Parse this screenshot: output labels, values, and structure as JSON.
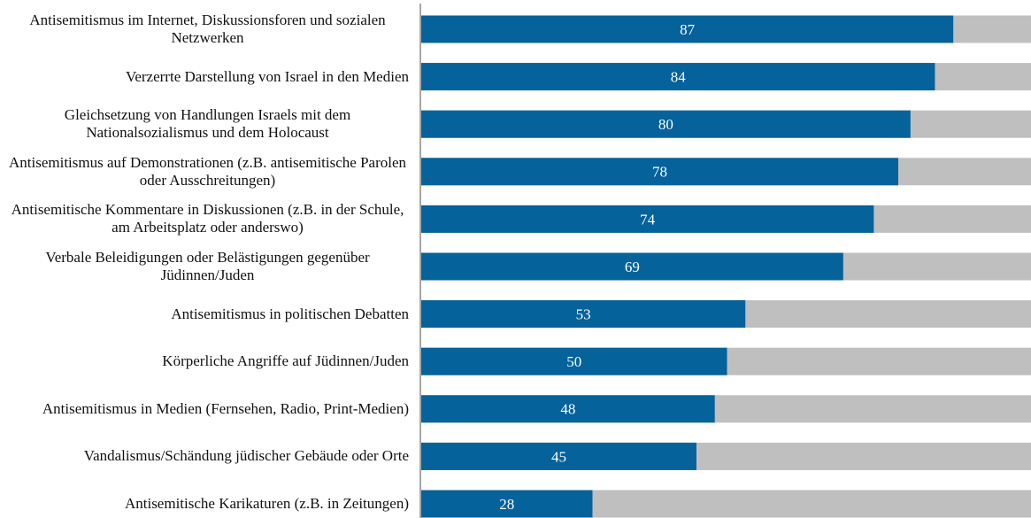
{
  "chart_data": {
    "type": "bar",
    "categories": [
      "Antisemitismus im Internet, Diskussionsforen und sozialen Netzwerken",
      "Verzerrte Darstellung von Israel in den Medien",
      "Gleichsetzung von Handlungen Israels mit dem Nationalsozialismus und dem Holocaust",
      "Antisemitismus auf Demonstrationen (z.B. antisemitische Parolen oder Ausschreitungen)",
      "Antisemitische Kommentare in Diskussionen (z.B. in der Schule, am Arbeitsplatz oder anderswo)",
      "Verbale Beleidigungen oder Belästigungen gegenüber Jüdinnen/Juden",
      "Antisemitismus in politischen Debatten",
      "Körperliche Angriffe auf Jüdinnen/Juden",
      "Antisemitismus in Medien (Fernsehen, Radio, Print-Medien)",
      "Vandalismus/Schändung jüdischer Gebäude oder Orte",
      "Antisemitische Karikaturen (z.B. in Zeitungen)"
    ],
    "values": [
      87,
      84,
      80,
      78,
      74,
      69,
      53,
      50,
      48,
      45,
      28
    ],
    "color": "#05629a",
    "track_color": "#bfbfbf",
    "xlim": [
      0,
      100
    ]
  }
}
